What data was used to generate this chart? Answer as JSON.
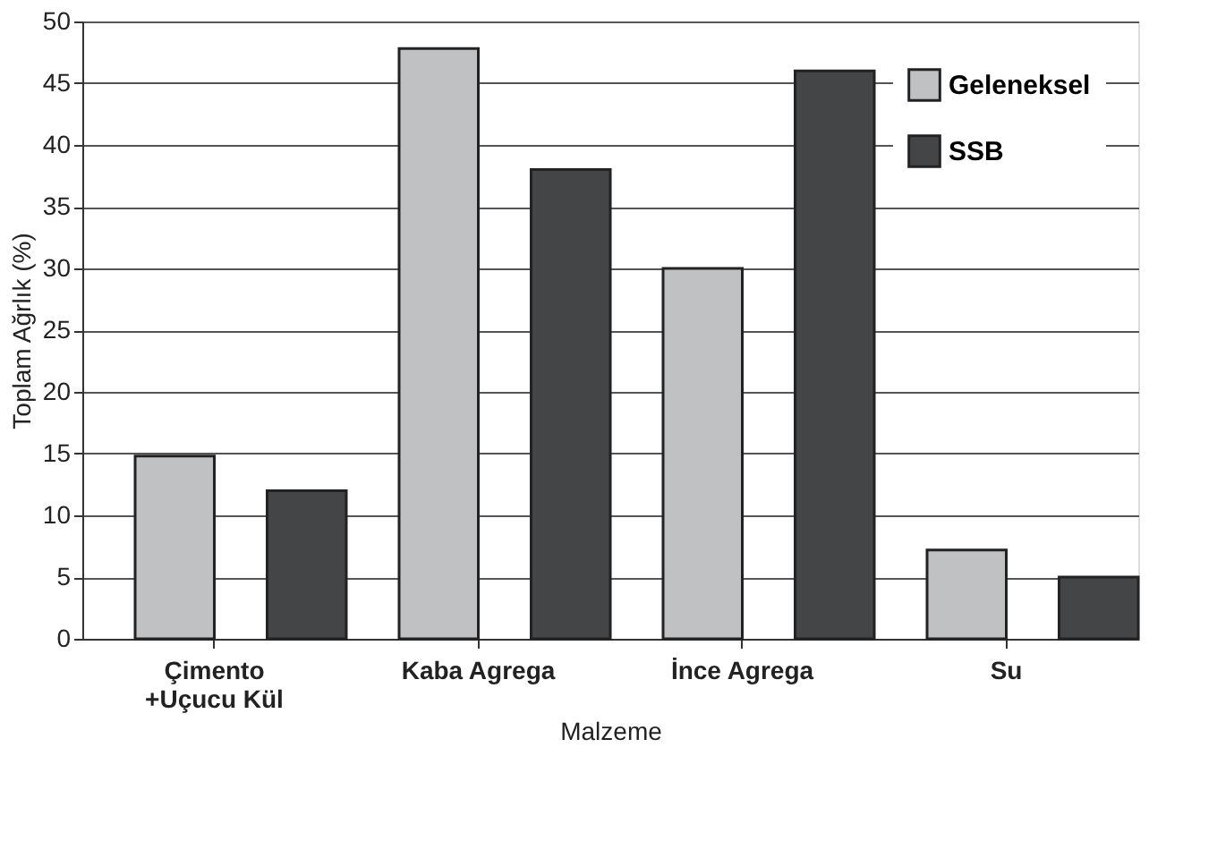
{
  "chart_data": {
    "type": "bar",
    "xlabel": "Malzeme",
    "ylabel": "Toplam Ağrlık (%)",
    "categories": [
      "Çimento\n+Uçucu Kül",
      "Kaba Agrega",
      "İnce Agrega",
      "Su"
    ],
    "series": [
      {
        "name": "Geleneksel",
        "color": "#c0c1c3",
        "values": [
          14.8,
          47.8,
          30,
          7.2
        ]
      },
      {
        "name": "SSB",
        "color": "#444547",
        "values": [
          12,
          38,
          46,
          5
        ]
      }
    ],
    "ylim": [
      0,
      50
    ],
    "yticks": [
      0,
      5,
      10,
      15,
      20,
      25,
      30,
      35,
      40,
      45,
      50
    ],
    "grid": "y",
    "legend": "top right"
  }
}
